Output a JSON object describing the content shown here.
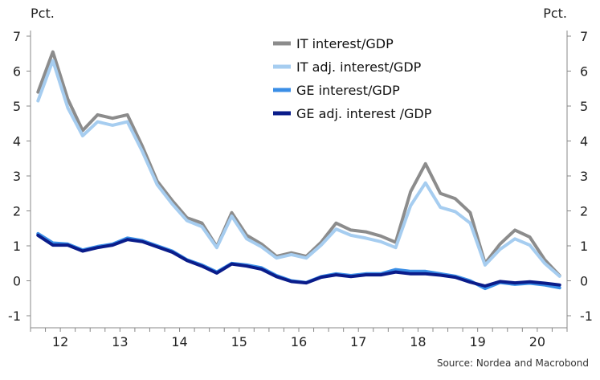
{
  "chart_data": {
    "type": "line",
    "unit_left": "Pct.",
    "unit_right": "Pct.",
    "source": "Source: Nordea and Macrobond",
    "ylim": [
      -1,
      7
    ],
    "yticks": [
      -1,
      0,
      1,
      2,
      3,
      4,
      5,
      6,
      7
    ],
    "xlim": [
      2011.5,
      2020.5
    ],
    "xticks": [
      {
        "label": "12",
        "at": 2012.0
      },
      {
        "label": "13",
        "at": 2013.0
      },
      {
        "label": "14",
        "at": 2014.0
      },
      {
        "label": "15",
        "at": 2015.0
      },
      {
        "label": "16",
        "at": 2016.0
      },
      {
        "label": "17",
        "at": 2017.0
      },
      {
        "label": "18",
        "at": 2018.0
      },
      {
        "label": "19",
        "at": 2019.0
      },
      {
        "label": "20",
        "at": 2020.0
      }
    ],
    "grid": false,
    "legend_position": "top-right",
    "x": [
      2011.625,
      2011.875,
      2012.125,
      2012.375,
      2012.625,
      2012.875,
      2013.125,
      2013.375,
      2013.625,
      2013.875,
      2014.125,
      2014.375,
      2014.625,
      2014.875,
      2015.125,
      2015.375,
      2015.625,
      2015.875,
      2016.125,
      2016.375,
      2016.625,
      2016.875,
      2017.125,
      2017.375,
      2017.625,
      2017.875,
      2018.125,
      2018.375,
      2018.625,
      2018.875,
      2019.125,
      2019.375,
      2019.625,
      2019.875,
      2020.125,
      2020.375
    ],
    "series": [
      {
        "name": "IT interest/GDP",
        "color": "#8c8c8c",
        "values": [
          5.4,
          6.55,
          5.2,
          4.3,
          4.75,
          4.65,
          4.75,
          3.85,
          2.85,
          2.3,
          1.8,
          1.65,
          0.98,
          1.95,
          1.3,
          1.05,
          0.7,
          0.8,
          0.7,
          1.1,
          1.65,
          1.45,
          1.4,
          1.28,
          1.1,
          2.55,
          3.35,
          2.5,
          2.35,
          1.95,
          0.5,
          1.05,
          1.45,
          1.25,
          0.6,
          0.15
        ]
      },
      {
        "name": "IT adj. interest/GDP",
        "color": "#a6cdf0",
        "values": [
          5.15,
          6.3,
          4.95,
          4.15,
          4.55,
          4.45,
          4.55,
          3.7,
          2.75,
          2.2,
          1.72,
          1.55,
          0.95,
          1.85,
          1.2,
          0.97,
          0.65,
          0.75,
          0.65,
          1.02,
          1.48,
          1.3,
          1.22,
          1.12,
          0.95,
          2.15,
          2.8,
          2.1,
          1.98,
          1.65,
          0.45,
          0.9,
          1.2,
          1.02,
          0.5,
          0.13
        ]
      },
      {
        "name": "GE interest/GDP",
        "color": "#3a8ee6",
        "values": [
          1.35,
          1.08,
          1.05,
          0.88,
          0.98,
          1.05,
          1.22,
          1.15,
          1.0,
          0.85,
          0.6,
          0.45,
          0.25,
          0.5,
          0.45,
          0.37,
          0.15,
          0.0,
          -0.05,
          0.12,
          0.2,
          0.15,
          0.2,
          0.2,
          0.32,
          0.27,
          0.27,
          0.2,
          0.13,
          0.0,
          -0.22,
          -0.05,
          -0.1,
          -0.07,
          -0.12,
          -0.2
        ]
      },
      {
        "name": "GE adj. interest /GDP",
        "color": "#0a1c8a",
        "values": [
          1.3,
          1.02,
          1.02,
          0.85,
          0.95,
          1.02,
          1.18,
          1.12,
          0.97,
          0.82,
          0.58,
          0.42,
          0.22,
          0.48,
          0.42,
          0.33,
          0.12,
          -0.02,
          -0.06,
          0.1,
          0.17,
          0.12,
          0.17,
          0.17,
          0.25,
          0.2,
          0.2,
          0.16,
          0.1,
          -0.04,
          -0.15,
          -0.02,
          -0.06,
          -0.03,
          -0.07,
          -0.12
        ]
      }
    ]
  }
}
